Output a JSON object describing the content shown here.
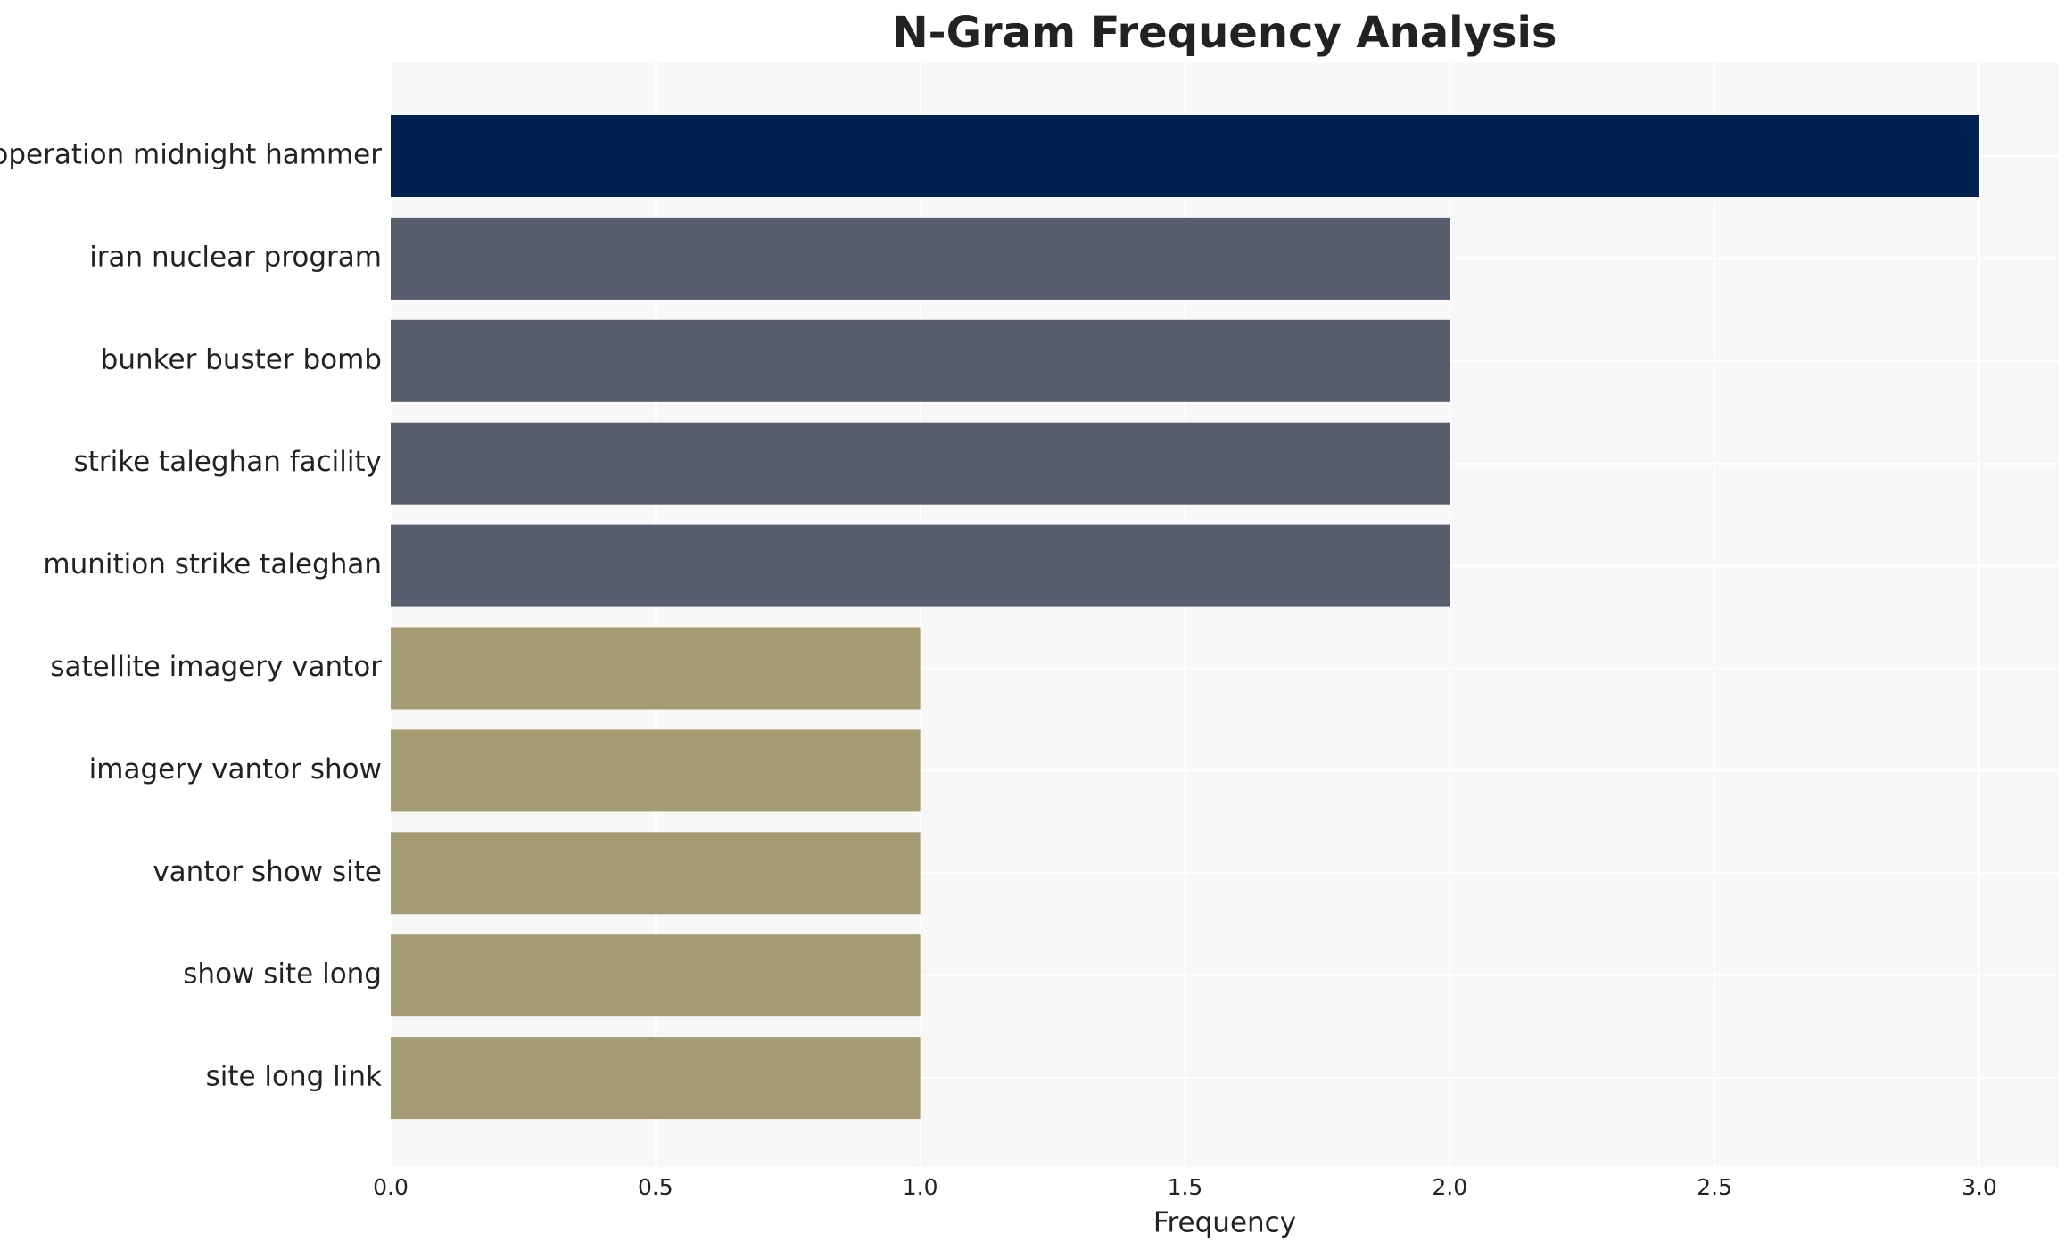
{
  "chart_data": {
    "type": "bar",
    "orientation": "horizontal",
    "title": "N-Gram Frequency Analysis",
    "x_label": "Frequency",
    "categories": [
      "operation midnight hammer",
      "iran nuclear program",
      "bunker buster bomb",
      "strike taleghan facility",
      "munition strike taleghan",
      "satellite imagery vantor",
      "imagery vantor show",
      "vantor show site",
      "show site long",
      "site long link"
    ],
    "values": [
      3,
      2,
      2,
      2,
      2,
      1,
      1,
      1,
      1,
      1
    ],
    "colors": [
      "#00224e",
      "#575d6d",
      "#575d6d",
      "#575d6d",
      "#575d6d",
      "#a59c74",
      "#a59c74",
      "#a59c74",
      "#a59c74",
      "#a59c74"
    ],
    "xlim": [
      0,
      3.15
    ],
    "xticks": [
      {
        "value": 0,
        "label": "0.0"
      },
      0.5,
      {
        "value": 1,
        "label": "1.0"
      },
      1.5,
      {
        "value": 2,
        "label": "2.0"
      },
      2.5,
      {
        "value": 3,
        "label": "3.0"
      }
    ],
    "grid": true
  }
}
